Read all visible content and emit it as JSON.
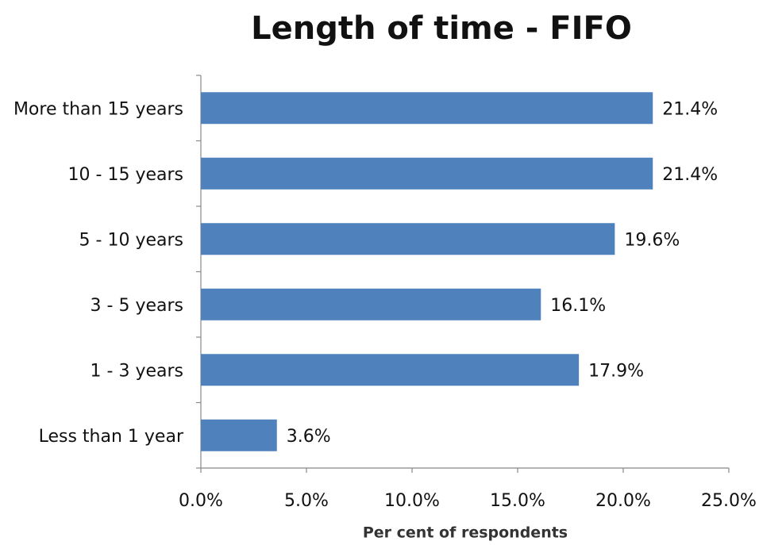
{
  "chart_data": {
    "type": "barh",
    "title": "Length of time - FIFO",
    "xlabel": "Per cent of respondents",
    "categories": [
      "More than 15 years",
      "10 - 15 years",
      "5 - 10 years",
      "3 - 5 years",
      "1 - 3 years",
      "Less than 1 year"
    ],
    "values": [
      21.4,
      21.4,
      19.6,
      16.1,
      17.9,
      3.6
    ],
    "value_labels": [
      "21.4%",
      "21.4%",
      "19.6%",
      "16.1%",
      "17.9%",
      "3.6%"
    ],
    "color": "#4f81bd",
    "xlim": [
      0,
      25
    ],
    "xticks": [
      {
        "value": 0,
        "label": "0.0%"
      },
      {
        "value": 5,
        "label": "5.0%"
      },
      {
        "value": 10,
        "label": "10.0%"
      },
      {
        "value": 15,
        "label": "15.0%"
      },
      {
        "value": 20,
        "label": "20.0%"
      },
      {
        "value": 25,
        "label": "25.0%"
      }
    ],
    "grid": false
  }
}
